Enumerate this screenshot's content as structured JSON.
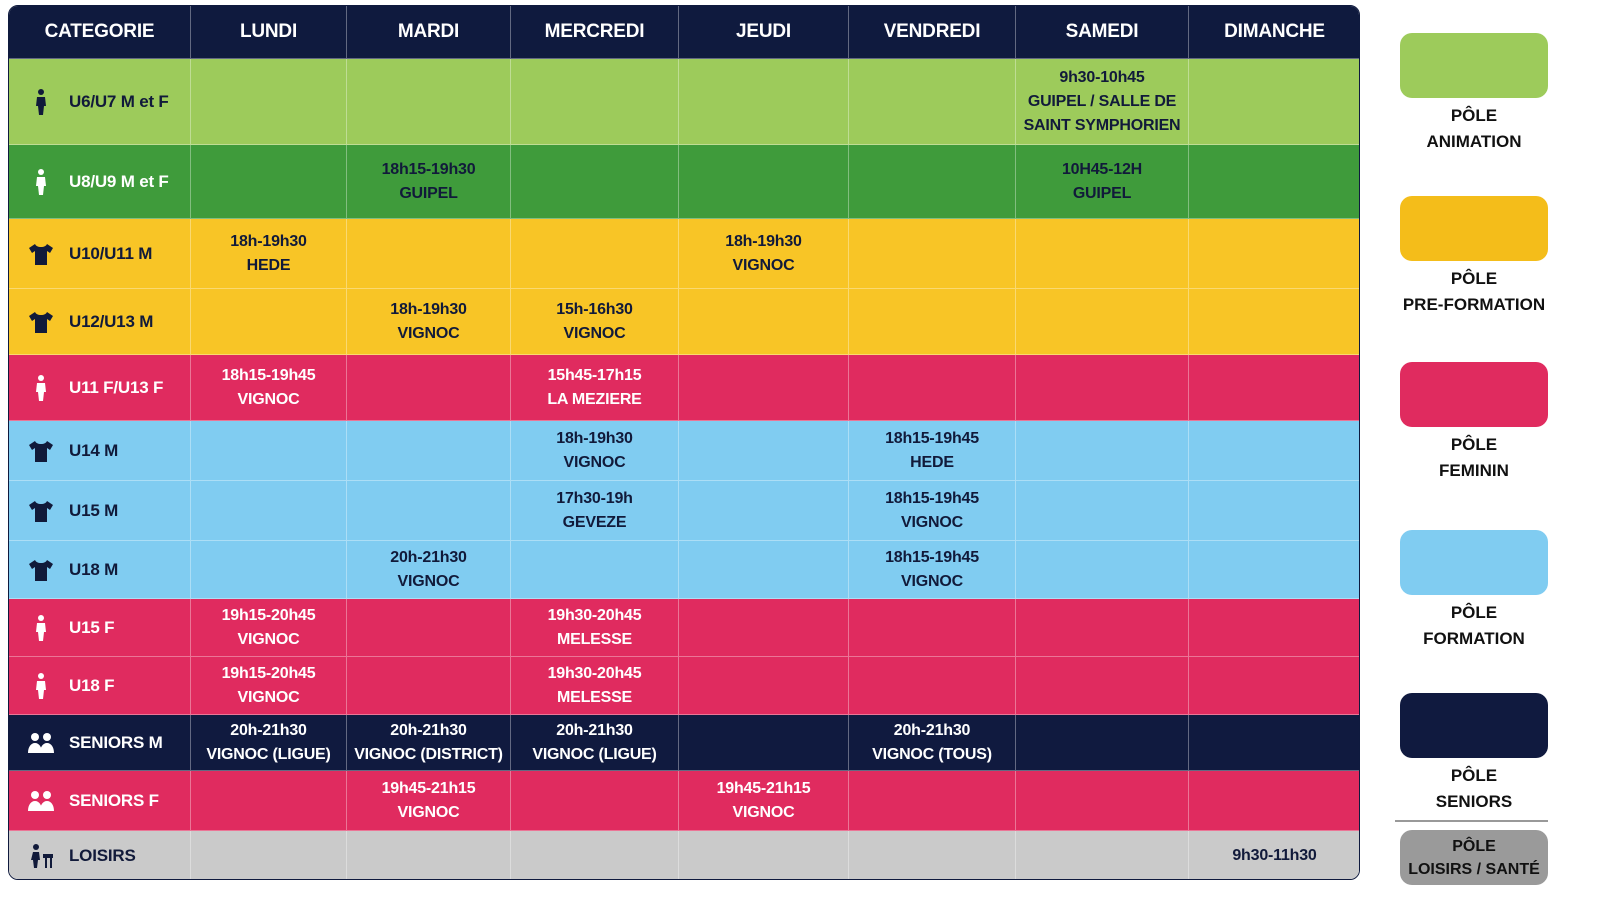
{
  "header": {
    "columns": [
      "CATEGORIE",
      "LUNDI",
      "MARDI",
      "MERCREDI",
      "JEUDI",
      "VENDREDI",
      "SAMEDI",
      "DIMANCHE"
    ]
  },
  "rows": [
    {
      "category": "U6/U7 M et F",
      "color": "#9dcb5b",
      "cells": [
        null,
        null,
        null,
        null,
        null,
        [
          "9h30-10h45",
          "GUIPEL / SALLE DE",
          "SAINT SYMPHORIEN"
        ],
        null
      ]
    },
    {
      "category": "U8/U9 M et F",
      "color": "#3f9b3b",
      "cells": [
        null,
        [
          "18h15-19h30",
          "GUIPEL"
        ],
        null,
        null,
        null,
        [
          "10H45-12H",
          "GUIPEL"
        ],
        null
      ]
    },
    {
      "category": "U10/U11 M",
      "color": "#f8c526",
      "cells": [
        [
          "18h-19h30",
          "HEDE"
        ],
        null,
        null,
        [
          "18h-19h30",
          "VIGNOC"
        ],
        null,
        null,
        null
      ]
    },
    {
      "category": "U12/U13 M",
      "color": "#f8c526",
      "cells": [
        null,
        [
          "18h-19h30",
          "VIGNOC"
        ],
        [
          "15h-16h30",
          "VIGNOC"
        ],
        null,
        null,
        null,
        null
      ]
    },
    {
      "category": "U11 F/U13 F",
      "color": "#e02b5f",
      "cells": [
        [
          "18h15-19h45",
          "VIGNOC"
        ],
        null,
        [
          "15h45-17h15",
          "LA MEZIERE"
        ],
        null,
        null,
        null,
        null
      ]
    },
    {
      "category": "U14 M",
      "color": "#80ccf1",
      "cells": [
        null,
        null,
        [
          "18h-19h30",
          "VIGNOC"
        ],
        null,
        [
          "18h15-19h45",
          "HEDE"
        ],
        null,
        null
      ]
    },
    {
      "category": "U15 M",
      "color": "#80ccf1",
      "cells": [
        null,
        null,
        [
          "17h30-19h",
          "GEVEZE"
        ],
        null,
        [
          "18h15-19h45",
          "VIGNOC"
        ],
        null,
        null
      ]
    },
    {
      "category": "U18 M",
      "color": "#80ccf1",
      "cells": [
        null,
        [
          "20h-21h30",
          "VIGNOC"
        ],
        null,
        null,
        [
          "18h15-19h45",
          "VIGNOC"
        ],
        null,
        null
      ]
    },
    {
      "category": "U15 F",
      "color": "#e02b5f",
      "cells": [
        [
          "19h15-20h45",
          "VIGNOC"
        ],
        null,
        [
          "19h30-20h45",
          "MELESSE"
        ],
        null,
        null,
        null,
        null
      ]
    },
    {
      "category": "U18 F",
      "color": "#e02b5f",
      "cells": [
        [
          "19h15-20h45",
          "VIGNOC"
        ],
        null,
        [
          "19h30-20h45",
          "MELESSE"
        ],
        null,
        null,
        null,
        null
      ]
    },
    {
      "category": "SENIORS M",
      "color": "#101a3f",
      "cells": [
        [
          "20h-21h30",
          "VIGNOC (LIGUE)"
        ],
        [
          "20h-21h30",
          "VIGNOC (DISTRICT)"
        ],
        [
          "20h-21h30",
          "VIGNOC (LIGUE)"
        ],
        null,
        [
          "20h-21h30",
          "VIGNOC (TOUS)"
        ],
        null,
        null
      ]
    },
    {
      "category": "SENIORS F",
      "color": "#e02b5f",
      "cells": [
        null,
        [
          "19h45-21h15",
          "VIGNOC"
        ],
        null,
        [
          "19h45-21h15",
          "VIGNOC"
        ],
        null,
        null,
        null
      ]
    },
    {
      "category": "LOISIRS",
      "color": "#cacaca",
      "cells": [
        null,
        null,
        null,
        null,
        null,
        null,
        [
          "9h30-11h30"
        ]
      ]
    }
  ],
  "legend": [
    {
      "color": "#9dcb5b",
      "label": [
        "PÔLE",
        "ANIMATION"
      ]
    },
    {
      "color": "#f4bd1a",
      "label": [
        "PÔLE",
        "PRE-FORMATION"
      ]
    },
    {
      "color": "#e02b5f",
      "label": [
        "PÔLE",
        "FEMININ"
      ]
    },
    {
      "color": "#80ccf1",
      "label": [
        "PÔLE",
        "FORMATION"
      ]
    },
    {
      "color": "#101a3f",
      "label": [
        "PÔLE",
        "SENIORS"
      ]
    },
    {
      "color": "#9a9a9a",
      "label": [
        "PÔLE",
        "LOISIRS / SANTÉ"
      ]
    }
  ]
}
